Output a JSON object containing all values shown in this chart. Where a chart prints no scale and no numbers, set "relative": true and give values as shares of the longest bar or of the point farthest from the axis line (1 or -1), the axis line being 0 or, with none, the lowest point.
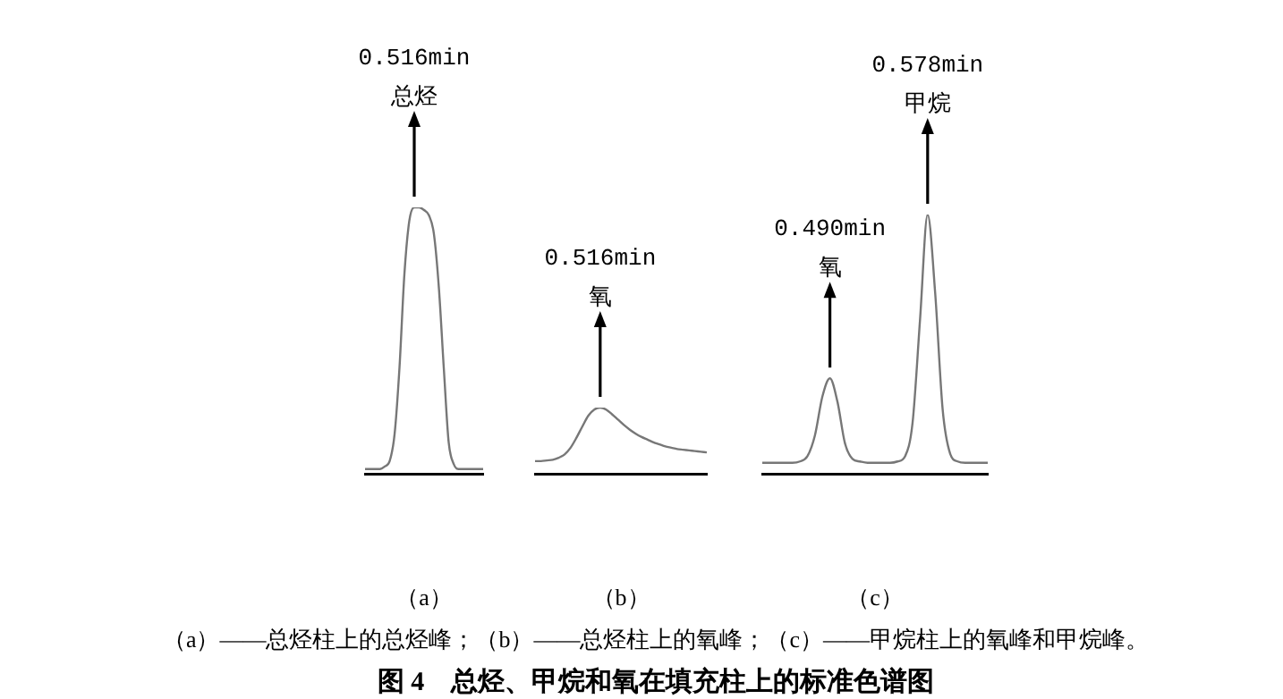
{
  "chart_data": [
    {
      "type": "line",
      "relative": true,
      "tick_labels": false,
      "xlabel": "（a）",
      "categories": [
        null,
        null,
        null,
        null,
        null,
        null,
        null,
        null,
        null,
        null,
        null,
        null,
        null,
        null,
        null,
        null,
        null,
        null,
        null,
        null,
        null,
        null,
        null,
        null,
        null
      ],
      "series": [
        {
          "color": "#777777",
          "values": [
            0.02,
            0.02,
            0.02,
            0.02,
            0.03,
            0.05,
            0.15,
            0.4,
            0.75,
            0.95,
            1,
            1,
            0.99,
            0.97,
            0.9,
            0.7,
            0.4,
            0.12,
            0.04,
            0.02,
            0.02,
            0.02,
            0.02,
            0.02,
            0.02
          ]
        }
      ],
      "annotations": [
        {
          "text": "0.516min\n总烃",
          "y": 1
        }
      ]
    },
    {
      "type": "line",
      "relative": true,
      "tick_labels": false,
      "xlabel": "（b）",
      "categories": [
        null,
        null,
        null,
        null,
        null,
        null,
        null,
        null,
        null,
        null,
        null,
        null,
        null,
        null,
        null,
        null,
        null,
        null,
        null,
        null,
        null,
        null,
        null,
        null,
        null,
        null,
        null,
        null,
        null,
        null
      ],
      "series": [
        {
          "color": "#777777",
          "values": [
            0.2,
            0.2,
            0.21,
            0.22,
            0.25,
            0.3,
            0.4,
            0.55,
            0.72,
            0.88,
            0.97,
            1,
            0.97,
            0.9,
            0.82,
            0.74,
            0.67,
            0.61,
            0.56,
            0.52,
            0.48,
            0.45,
            0.42,
            0.4,
            0.38,
            0.37,
            0.36,
            0.35,
            0.34,
            0.33
          ]
        }
      ],
      "annotations": [
        {
          "text": "0.516min\n氧",
          "y": 1
        }
      ]
    },
    {
      "type": "line",
      "relative": true,
      "tick_labels": false,
      "xlabel": "（c）",
      "categories": [
        null,
        null,
        null,
        null,
        null,
        null,
        null,
        null,
        null,
        null,
        null,
        null,
        null,
        null,
        null,
        null,
        null,
        null,
        null,
        null,
        null,
        null,
        null,
        null,
        null,
        null,
        null,
        null,
        null,
        null,
        null
      ],
      "series": [
        {
          "color": "#777777",
          "values": [
            0.045,
            0.045,
            0.045,
            0.045,
            0.045,
            0.05,
            0.07,
            0.15,
            0.3,
            0.37,
            0.28,
            0.12,
            0.06,
            0.05,
            0.045,
            0.045,
            0.045,
            0.045,
            0.05,
            0.07,
            0.2,
            0.6,
            1,
            0.7,
            0.25,
            0.08,
            0.05,
            0.045,
            0.045,
            0.045,
            0.045
          ]
        }
      ],
      "annotations": [
        {
          "text": "0.490min\n氧",
          "y": 0.37
        },
        {
          "text": "0.578min\n甲烷",
          "y": 1
        }
      ]
    },
    {
      "type": "other",
      "title": "图 4　总烃、甲烷和氧在填充柱上的标准色谱图",
      "annotations": [
        "（a）——总烃柱上的总烃峰；（b）——总烃柱上的氧峰；（c）——甲烷柱上的氧峰和甲烷峰。"
      ]
    }
  ]
}
